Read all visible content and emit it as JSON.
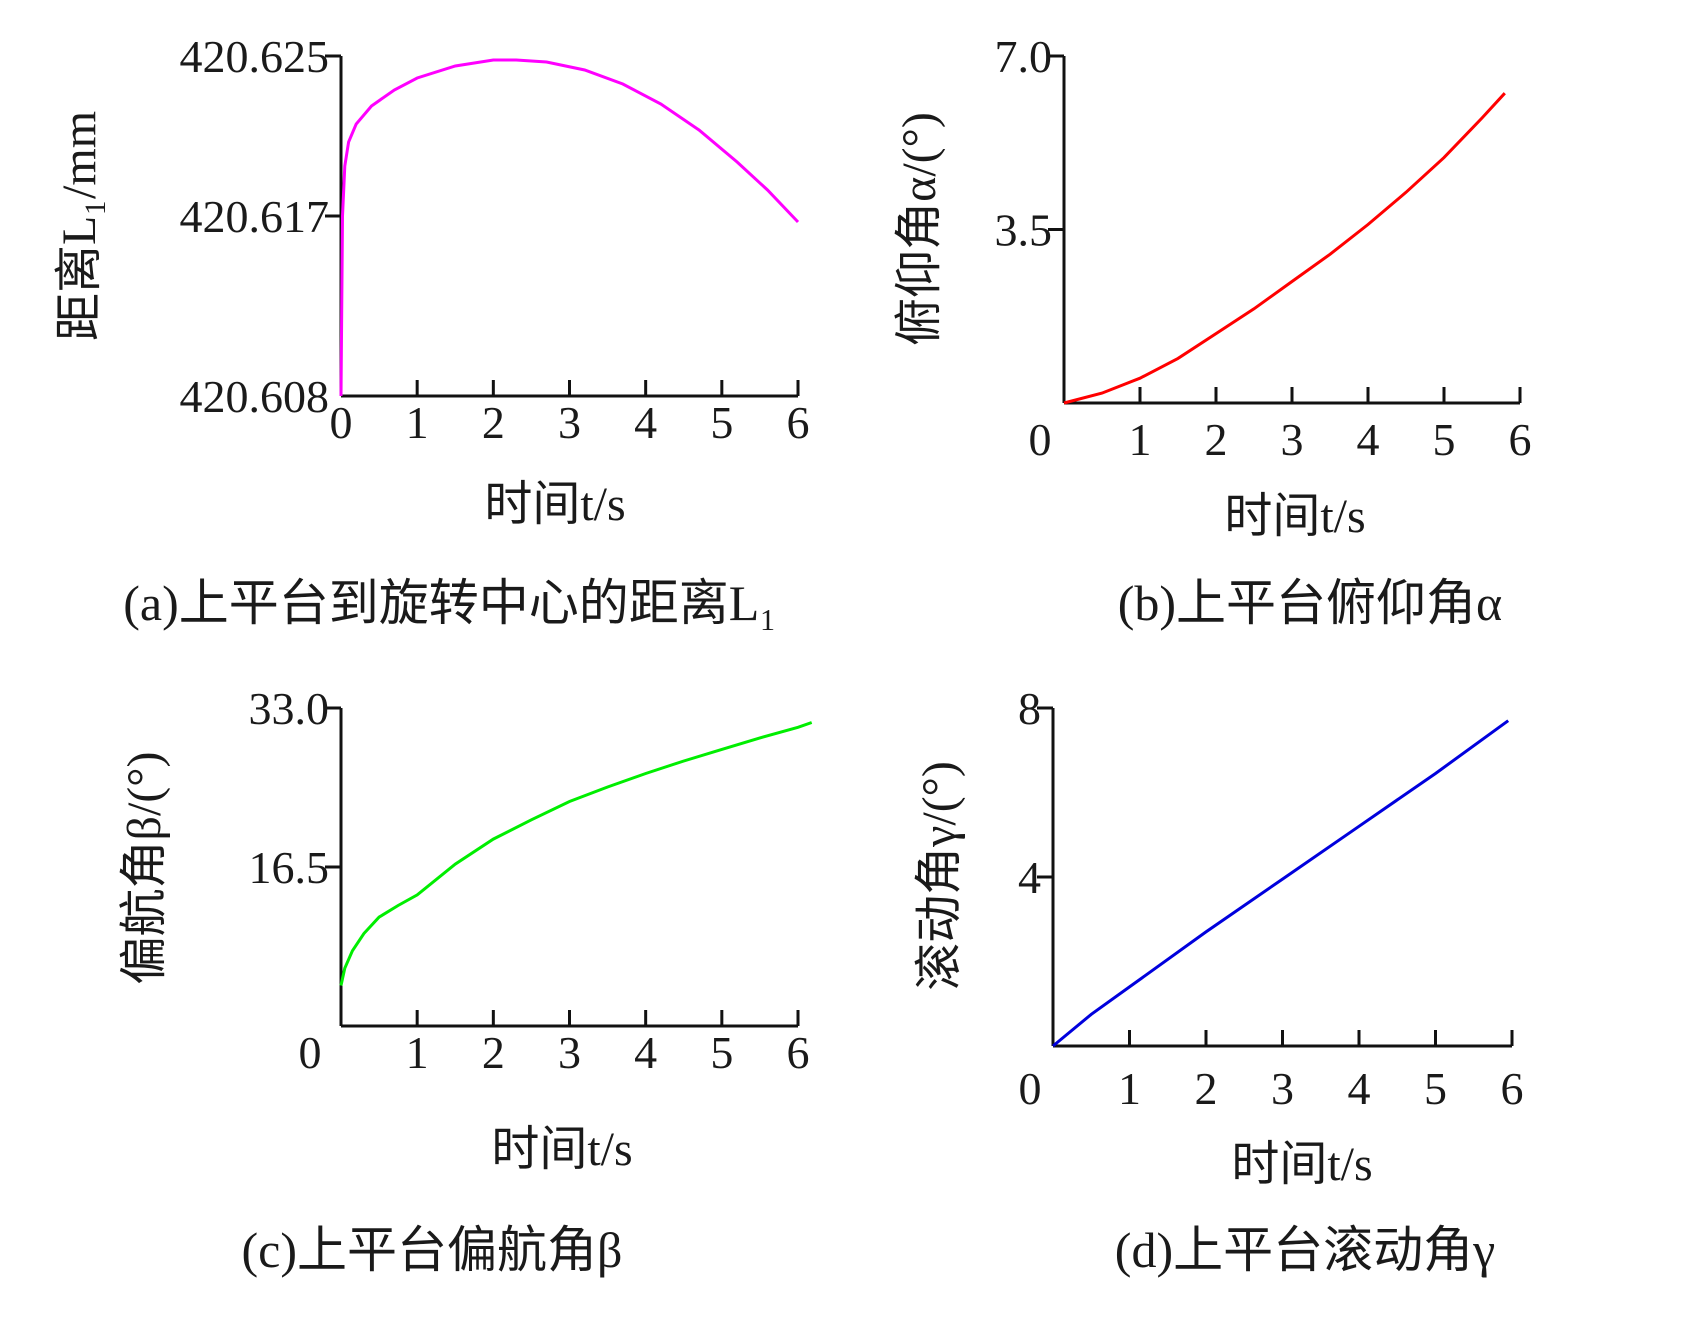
{
  "chart_data": [
    {
      "type": "line",
      "caption": "(a)上平台到旋转中心的距离L₁",
      "xlabel": "时间t/s",
      "ylabel": "距离L₁/mm",
      "xlim": [
        0,
        6
      ],
      "ylim": [
        420.608,
        420.625
      ],
      "xticks": [
        "0",
        "1",
        "2",
        "3",
        "4",
        "5",
        "6"
      ],
      "yticks": [
        "420.608",
        "420.617",
        "420.625"
      ],
      "ytick_values": [
        420.608,
        420.617,
        420.625
      ],
      "color": "#ff00ff",
      "x": [
        0,
        0.02,
        0.05,
        0.1,
        0.2,
        0.4,
        0.7,
        1.0,
        1.5,
        2.0,
        2.3,
        2.7,
        3.2,
        3.7,
        4.2,
        4.7,
        5.2,
        5.6,
        6.0
      ],
      "y": [
        420.608,
        420.617,
        420.6195,
        420.6207,
        420.6216,
        420.6225,
        420.6233,
        420.6239,
        420.6245,
        420.6248,
        420.6248,
        420.6247,
        420.6243,
        420.6236,
        420.6226,
        420.6213,
        420.6197,
        420.6183,
        420.6167
      ]
    },
    {
      "type": "line",
      "caption": "(b)上平台俯仰角α",
      "xlabel": "时间t/s",
      "ylabel": "俯仰角α/(°)",
      "xlim": [
        0,
        6
      ],
      "ylim": [
        0,
        7.0
      ],
      "xticks": [
        "0",
        "1",
        "2",
        "3",
        "4",
        "5",
        "6"
      ],
      "yticks": [
        "0",
        "3.5",
        "7.0"
      ],
      "ytick_values": [
        0,
        3.5,
        7.0
      ],
      "color": "#ff0000",
      "x": [
        0,
        0.5,
        1,
        1.5,
        2,
        2.5,
        3,
        3.5,
        4,
        4.5,
        5,
        5.5,
        5.8
      ],
      "y": [
        0,
        0.2,
        0.5,
        0.9,
        1.4,
        1.9,
        2.45,
        3.0,
        3.6,
        4.25,
        4.95,
        5.75,
        6.25
      ]
    },
    {
      "type": "line",
      "caption": "(c)上平台偏航角β",
      "xlabel": "时间t/s",
      "ylabel": "偏航角β/(°)",
      "xlim": [
        0,
        6
      ],
      "ylim": [
        0,
        33.0
      ],
      "xticks": [
        "0",
        "1",
        "2",
        "3",
        "4",
        "5",
        "6"
      ],
      "yticks": [
        "0",
        "16.5",
        "33.0"
      ],
      "ytick_values": [
        0,
        16.5,
        33.0
      ],
      "color": "#00ee00",
      "x": [
        0,
        0.05,
        0.15,
        0.3,
        0.5,
        0.75,
        1,
        1.5,
        2,
        2.5,
        3,
        3.5,
        4,
        4.5,
        5,
        5.5,
        6,
        6.18
      ],
      "y": [
        4.2,
        6.0,
        7.8,
        9.6,
        11.3,
        12.5,
        13.6,
        16.8,
        19.4,
        21.4,
        23.3,
        24.8,
        26.2,
        27.5,
        28.7,
        29.9,
        31.0,
        31.5
      ]
    },
    {
      "type": "line",
      "caption": "(d)上平台滚动角γ",
      "xlabel": "时间t/s",
      "ylabel": "滚动角γ/(°)",
      "xlim": [
        0,
        6
      ],
      "ylim": [
        0,
        8
      ],
      "xticks": [
        "0",
        "1",
        "2",
        "3",
        "4",
        "5",
        "6"
      ],
      "yticks": [
        "0",
        "4",
        "8"
      ],
      "ytick_values": [
        0,
        4,
        8
      ],
      "color": "#0000dd",
      "x": [
        0,
        0.5,
        1,
        2,
        3,
        4,
        5,
        5.95
      ],
      "y": [
        0,
        0.75,
        1.4,
        2.7,
        3.95,
        5.2,
        6.45,
        7.7
      ]
    }
  ]
}
